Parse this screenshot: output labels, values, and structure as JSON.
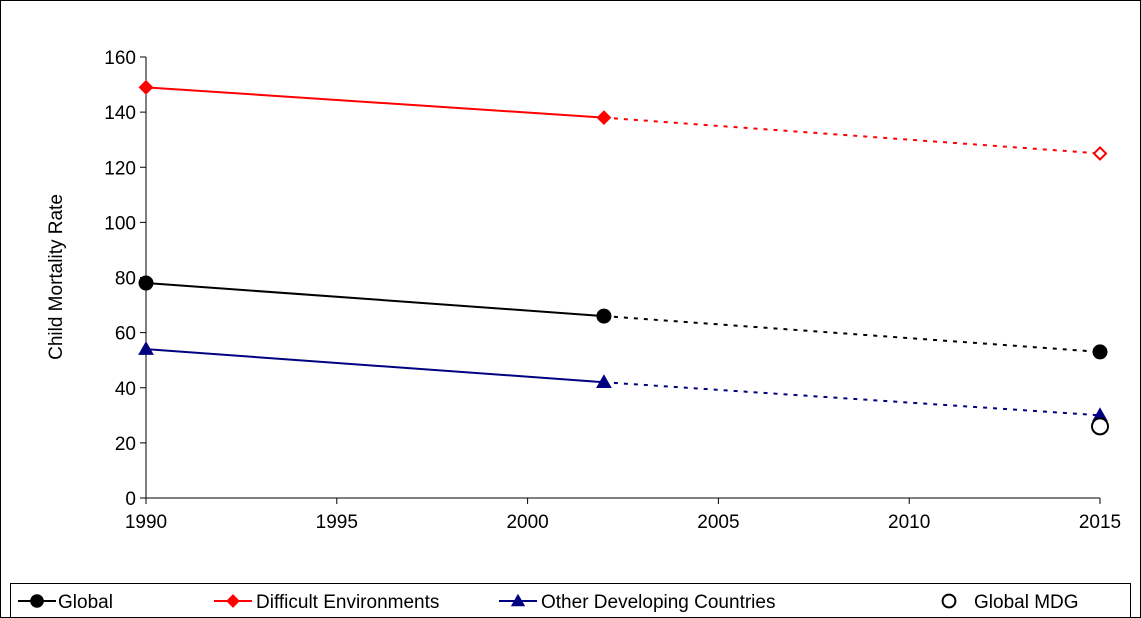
{
  "chart_data": {
    "type": "line",
    "title": "",
    "xlabel": "",
    "ylabel": "Child Mortality Rate",
    "xlim": [
      1990,
      2015
    ],
    "ylim": [
      0,
      160
    ],
    "x_ticks": [
      1990,
      1995,
      2000,
      2005,
      2010,
      2015
    ],
    "y_ticks": [
      0,
      20,
      40,
      60,
      80,
      100,
      120,
      140,
      160
    ],
    "grid": false,
    "legend_position": "bottom",
    "series": [
      {
        "name": "Global",
        "color": "#000000",
        "marker": "circle",
        "points": [
          {
            "x": 1990,
            "y": 78
          },
          {
            "x": 2002,
            "y": 66
          }
        ],
        "projection": [
          {
            "x": 2002,
            "y": 66
          },
          {
            "x": 2015,
            "y": 53
          }
        ],
        "projection_marker": "circle"
      },
      {
        "name": "Difficult Environments",
        "color": "#ff0000",
        "marker": "diamond",
        "points": [
          {
            "x": 1990,
            "y": 149
          },
          {
            "x": 2002,
            "y": 138
          }
        ],
        "projection": [
          {
            "x": 2002,
            "y": 138
          },
          {
            "x": 2015,
            "y": 125
          }
        ],
        "projection_marker": "diamond-open"
      },
      {
        "name": "Other Developing Countries",
        "color": "#000080",
        "marker": "triangle",
        "points": [
          {
            "x": 1990,
            "y": 54
          },
          {
            "x": 2002,
            "y": 42
          }
        ],
        "projection": [
          {
            "x": 2002,
            "y": 42
          },
          {
            "x": 2015,
            "y": 30
          }
        ],
        "projection_marker": "triangle"
      },
      {
        "name": "Global MDG",
        "color": "#000000",
        "marker": "circle-open",
        "points": [
          {
            "x": 2015,
            "y": 26
          }
        ],
        "projection": [],
        "projection_marker": "circle-open"
      }
    ]
  }
}
